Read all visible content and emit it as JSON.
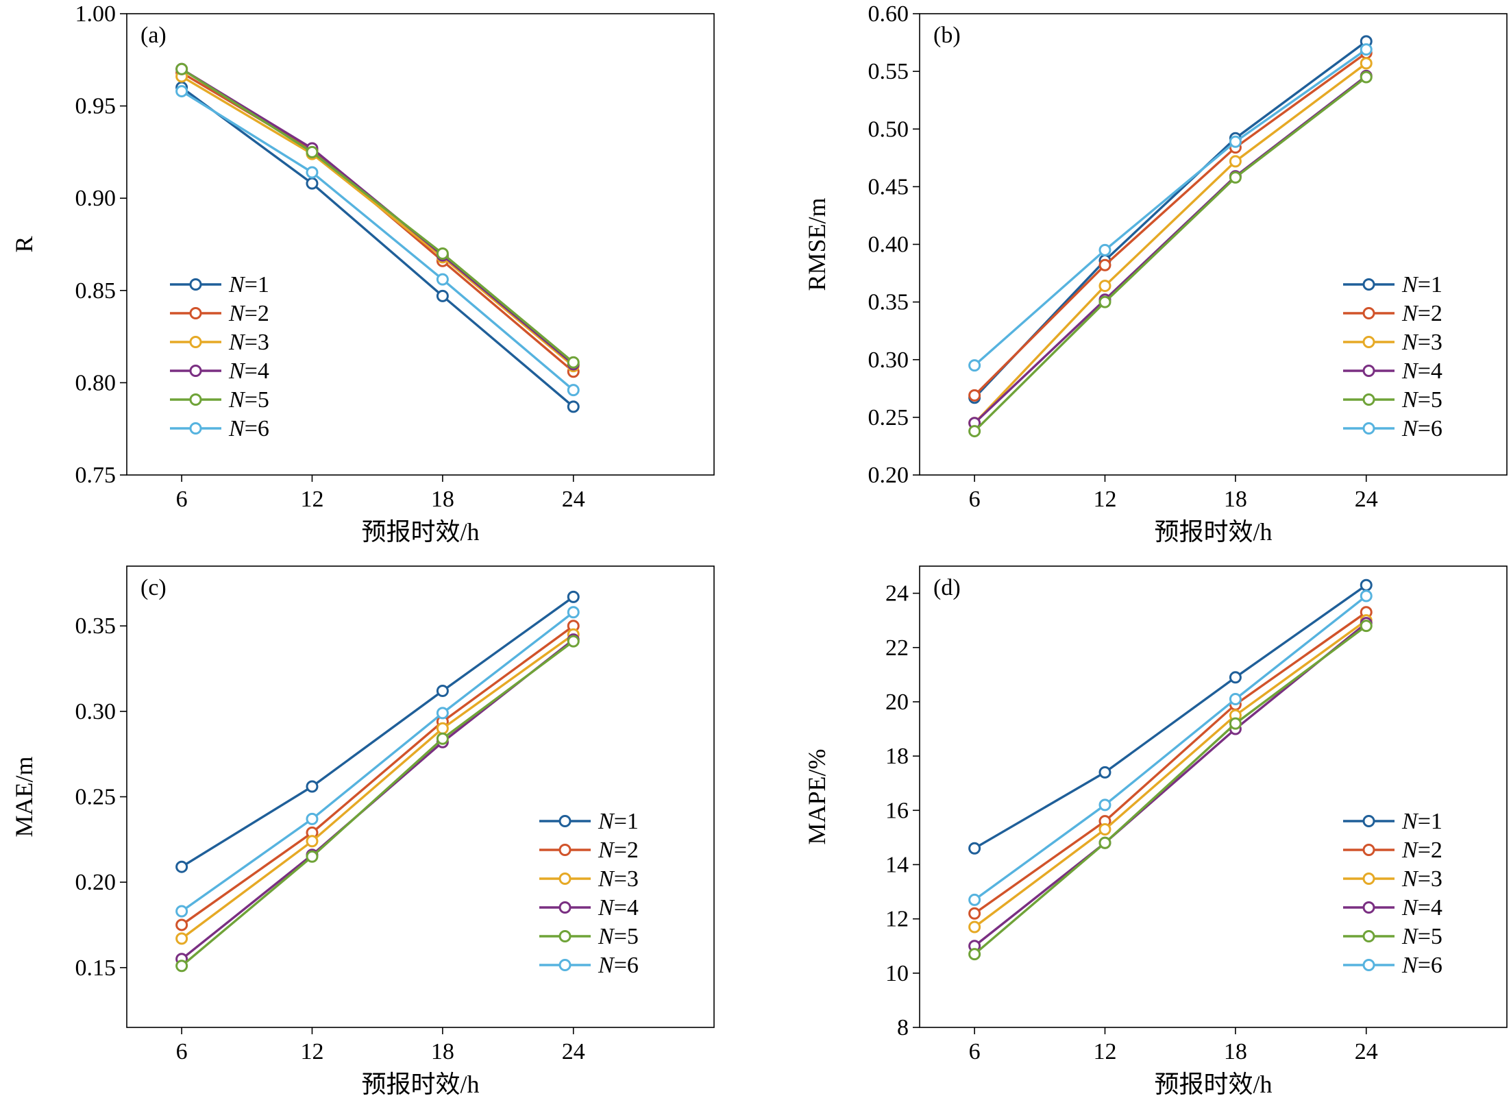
{
  "series_colors": [
    "#1f5f99",
    "#d1532a",
    "#e6a925",
    "#7a2f82",
    "#6fa338",
    "#56b3df"
  ],
  "legend_prefix": "N",
  "chart_data": [
    {
      "type": "line",
      "panel": "(a)",
      "xlabel": "预报时效/h",
      "ylabel": "R",
      "x": [
        6,
        12,
        18,
        24
      ],
      "ylim": [
        0.75,
        1.0
      ],
      "yticks": [
        "0.75",
        "0.80",
        "0.85",
        "0.90",
        "0.95",
        "1.00"
      ],
      "xticks": [
        "6",
        "12",
        "18",
        "24"
      ],
      "legend_position": "lower-left",
      "series": [
        {
          "name": "=1",
          "values": [
            0.96,
            0.908,
            0.847,
            0.787
          ]
        },
        {
          "name": "=2",
          "values": [
            0.968,
            0.926,
            0.866,
            0.806
          ]
        },
        {
          "name": "=3",
          "values": [
            0.966,
            0.924,
            0.868,
            0.809
          ]
        },
        {
          "name": "=4",
          "values": [
            0.97,
            0.927,
            0.869,
            0.81
          ]
        },
        {
          "name": "=5",
          "values": [
            0.97,
            0.925,
            0.87,
            0.811
          ]
        },
        {
          "name": "=6",
          "values": [
            0.958,
            0.914,
            0.856,
            0.796
          ]
        }
      ]
    },
    {
      "type": "line",
      "panel": "(b)",
      "xlabel": "预报时效/h",
      "ylabel": "RMSE/m",
      "x": [
        6,
        12,
        18,
        24
      ],
      "ylim": [
        0.2,
        0.6
      ],
      "yticks": [
        "0.20",
        "0.25",
        "0.30",
        "0.35",
        "0.40",
        "0.45",
        "0.50",
        "0.55",
        "0.60"
      ],
      "xticks": [
        "6",
        "12",
        "18",
        "24"
      ],
      "legend_position": "lower-right",
      "series": [
        {
          "name": "=1",
          "values": [
            0.267,
            0.386,
            0.492,
            0.576
          ]
        },
        {
          "name": "=2",
          "values": [
            0.269,
            0.382,
            0.484,
            0.566
          ]
        },
        {
          "name": "=3",
          "values": [
            0.245,
            0.364,
            0.472,
            0.557
          ]
        },
        {
          "name": "=4",
          "values": [
            0.245,
            0.352,
            0.459,
            0.546
          ]
        },
        {
          "name": "=5",
          "values": [
            0.238,
            0.35,
            0.458,
            0.545
          ]
        },
        {
          "name": "=6",
          "values": [
            0.295,
            0.395,
            0.489,
            0.569
          ]
        }
      ]
    },
    {
      "type": "line",
      "panel": "(c)",
      "xlabel": "预报时效/h",
      "ylabel": "MAE/m",
      "x": [
        6,
        12,
        18,
        24
      ],
      "ylim": [
        0.115,
        0.385
      ],
      "yticks": [
        "0.15",
        "0.20",
        "0.25",
        "0.30",
        "0.35"
      ],
      "ytick_values": [
        0.15,
        0.2,
        0.25,
        0.3,
        0.35
      ],
      "xticks": [
        "6",
        "12",
        "18",
        "24"
      ],
      "legend_position": "lower-right",
      "series": [
        {
          "name": "=1",
          "values": [
            0.209,
            0.256,
            0.312,
            0.367
          ]
        },
        {
          "name": "=2",
          "values": [
            0.175,
            0.229,
            0.294,
            0.35
          ]
        },
        {
          "name": "=3",
          "values": [
            0.167,
            0.224,
            0.29,
            0.345
          ]
        },
        {
          "name": "=4",
          "values": [
            0.155,
            0.216,
            0.282,
            0.342
          ]
        },
        {
          "name": "=5",
          "values": [
            0.151,
            0.215,
            0.284,
            0.341
          ]
        },
        {
          "name": "=6",
          "values": [
            0.183,
            0.237,
            0.299,
            0.358
          ]
        }
      ]
    },
    {
      "type": "line",
      "panel": "(d)",
      "xlabel": "预报时效/h",
      "ylabel": "MAPE/%",
      "x": [
        6,
        12,
        18,
        24
      ],
      "ylim": [
        8,
        25
      ],
      "yticks": [
        "8",
        "10",
        "12",
        "14",
        "16",
        "18",
        "20",
        "22",
        "24"
      ],
      "ytick_values": [
        8,
        10,
        12,
        14,
        16,
        18,
        20,
        22,
        24
      ],
      "xticks": [
        "6",
        "12",
        "18",
        "24"
      ],
      "legend_position": "lower-right",
      "series": [
        {
          "name": "=1",
          "values": [
            14.6,
            17.4,
            20.9,
            24.3
          ]
        },
        {
          "name": "=2",
          "values": [
            12.2,
            15.6,
            19.9,
            23.3
          ]
        },
        {
          "name": "=3",
          "values": [
            11.7,
            15.3,
            19.5,
            23.0
          ]
        },
        {
          "name": "=4",
          "values": [
            11.0,
            14.8,
            19.0,
            22.9
          ]
        },
        {
          "name": "=5",
          "values": [
            10.7,
            14.8,
            19.2,
            22.8
          ]
        },
        {
          "name": "=6",
          "values": [
            12.7,
            16.2,
            20.1,
            23.9
          ]
        }
      ]
    }
  ]
}
